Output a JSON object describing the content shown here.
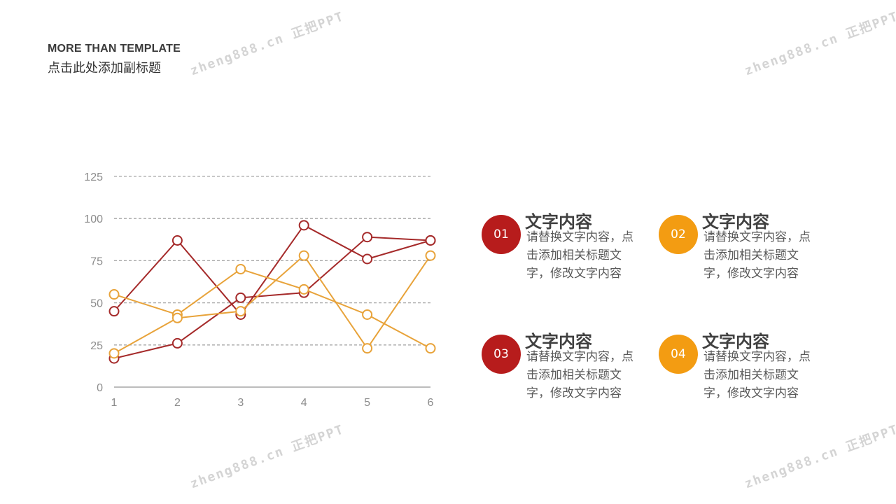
{
  "header": {
    "title": "MORE THAN TEMPLATE",
    "subtitle": "点击此处添加副标题"
  },
  "watermark": {
    "text": "zheng888.cn 正把PPT",
    "color": "#d4d4d4"
  },
  "colors": {
    "dark_red": "#b71c1c",
    "orange": "#f39c12",
    "series_red": "#a52a2a",
    "series_orange": "#e8a33a",
    "grid": "#a6a6a6",
    "axis_text": "#8c8c8c"
  },
  "chart_data": {
    "type": "line",
    "x": [
      1,
      2,
      3,
      4,
      5,
      6
    ],
    "ylim": [
      0,
      125
    ],
    "yticks": [
      0,
      25,
      50,
      75,
      100,
      125
    ],
    "grid": true,
    "series": [
      {
        "values": [
          45,
          87,
          43,
          96,
          76,
          87
        ],
        "color": "#a52a2a"
      },
      {
        "values": [
          17,
          26,
          53,
          56,
          89,
          87
        ],
        "color": "#a52a2a"
      },
      {
        "values": [
          55,
          43,
          70,
          58,
          43,
          23
        ],
        "color": "#e8a33a"
      },
      {
        "values": [
          20,
          41,
          45,
          78,
          23,
          78
        ],
        "color": "#e8a33a"
      }
    ]
  },
  "items": [
    {
      "num": "01",
      "heading": "文字内容",
      "desc": "请替换文字内容，点击添加相关标题文字，修改文字内容",
      "color": "#b71c1c"
    },
    {
      "num": "02",
      "heading": "文字内容",
      "desc": "请替换文字内容，点击添加相关标题文字，修改文字内容",
      "color": "#f39c12"
    },
    {
      "num": "03",
      "heading": "文字内容",
      "desc": "请替换文字内容，点击添加相关标题文字，修改文字内容",
      "color": "#b71c1c"
    },
    {
      "num": "04",
      "heading": "文字内容",
      "desc": "请替换文字内容，点击添加相关标题文字，修改文字内容",
      "color": "#f39c12"
    }
  ]
}
